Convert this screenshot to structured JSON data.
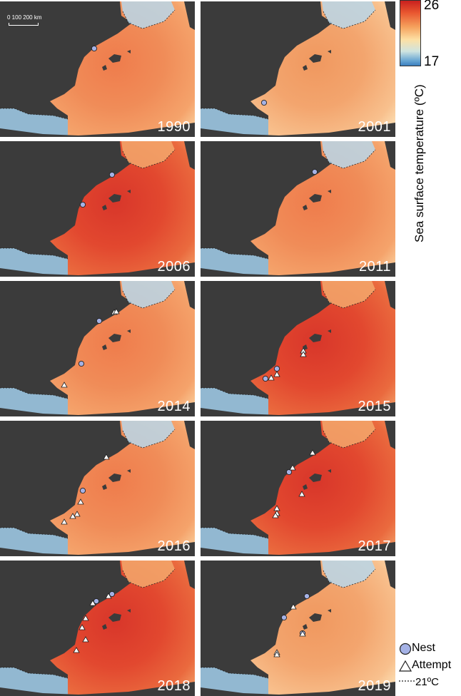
{
  "scale_bar": {
    "label": "0   100 200 km"
  },
  "colorbar": {
    "max": "26",
    "min": "17",
    "title": "Sea surface temperature (ºC)"
  },
  "legend": {
    "nest": "Nest",
    "attempt": "Attempt",
    "isotherm": "21ºC"
  },
  "colors": {
    "land": "#3b3b3b",
    "hot": "#d63a2a",
    "warm": "#f08a55",
    "mild": "#f7c48d",
    "cool": "#fde6b8",
    "cold": "#a9cfe5",
    "nest": "#a5b2e6"
  },
  "panels": [
    {
      "year": "1990",
      "heat": "warm",
      "nests": [
        [
          132,
          68
        ],
        [
          0,
          0
        ]
      ],
      "attempts": []
    },
    {
      "year": "2001",
      "heat": "mild",
      "nests": [
        [
          370,
          144
        ]
      ],
      "attempts": []
    },
    {
      "year": "2006",
      "heat": "hot",
      "nests": [
        [
          157,
          245
        ],
        [
          116,
          287
        ]
      ],
      "attempts": []
    },
    {
      "year": "2011",
      "heat": "warm",
      "nests": [
        [
          441,
          241
        ]
      ],
      "attempts": []
    },
    {
      "year": "2014",
      "heat": "warm",
      "nests": [
        [
          139,
          450
        ],
        [
          114,
          510
        ]
      ],
      "attempts": [
        [
          160,
          438
        ],
        [
          163,
          437
        ],
        [
          90,
          540
        ]
      ]
    },
    {
      "year": "2015",
      "heat": "hot",
      "nests": [
        [
          388,
          517
        ],
        [
          372,
          531
        ]
      ],
      "attempts": [
        [
          425,
          492
        ],
        [
          425,
          497
        ],
        [
          388,
          525
        ],
        [
          380,
          530
        ]
      ]
    },
    {
      "year": "2016",
      "heat": "warm",
      "nests": [
        [
          116,
          688
        ]
      ],
      "attempts": [
        [
          149,
          641
        ],
        [
          113,
          704
        ],
        [
          108,
          721
        ],
        [
          102,
          724
        ],
        [
          90,
          732
        ]
      ]
    },
    {
      "year": "2017",
      "heat": "hot",
      "nests": [
        [
          405,
          662
        ]
      ],
      "attempts": [
        [
          438,
          635
        ],
        [
          410,
          656
        ],
        [
          423,
          693
        ],
        [
          388,
          713
        ],
        [
          388,
          720
        ],
        [
          386,
          723
        ]
      ]
    },
    {
      "year": "2018",
      "heat": "hot",
      "nests": [
        [
          135,
          843
        ],
        [
          157,
          833
        ]
      ],
      "attempts": [
        [
          152,
          836
        ],
        [
          130,
          846
        ],
        [
          120,
          867
        ],
        [
          115,
          880
        ],
        [
          120,
          897
        ],
        [
          107,
          912
        ]
      ]
    },
    {
      "year": "2019",
      "heat": "mild",
      "nests": [
        [
          430,
          836
        ],
        [
          398,
          866
        ],
        [
          424,
          888
        ]
      ],
      "attempts": [
        [
          411,
          851
        ],
        [
          424,
          889
        ],
        [
          388,
          915
        ],
        [
          388,
          918
        ]
      ]
    }
  ]
}
